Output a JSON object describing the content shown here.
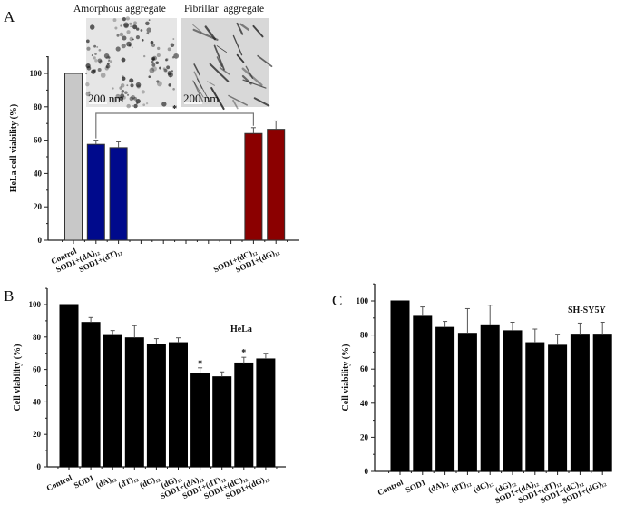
{
  "chart_data": [
    {
      "panel": "A",
      "type": "bar",
      "ylabel": "HeLa cell viability (%)",
      "ylim": [
        0,
        110
      ],
      "yticks": [
        0,
        20,
        40,
        60,
        80,
        100
      ],
      "categories": [
        "Control",
        "SOD1+(dA)₁₂",
        "SOD1+(dT)₁₂",
        "",
        "",
        "",
        "",
        "",
        "SOD1+(dC)₁₂",
        "SOD1+(dG)₁₂"
      ],
      "values": [
        100,
        57.5,
        55.5,
        null,
        null,
        null,
        null,
        null,
        64,
        66.5
      ],
      "errors": [
        0,
        2.5,
        3.5,
        null,
        null,
        null,
        null,
        null,
        3.5,
        5
      ],
      "colors": [
        "#c8c8c8",
        "#000a8c",
        "#000a8c",
        null,
        null,
        null,
        null,
        null,
        "#8b0000",
        "#8b0000"
      ],
      "significance": {
        "from": "SOD1+(dA)₁₂",
        "to": "SOD1+(dC)₁₂",
        "mark": "*"
      },
      "insets": [
        {
          "caption": "Amorphous aggregate",
          "scale_bar": "200 nm"
        },
        {
          "caption": "Fibrillar  aggregate",
          "scale_bar": "200 nm"
        }
      ],
      "grid": false
    },
    {
      "panel": "B",
      "type": "bar",
      "annotation": "HeLa",
      "ylabel": "Cell viability (%)",
      "ylim": [
        0,
        110
      ],
      "yticks": [
        0,
        20,
        40,
        60,
        80,
        100
      ],
      "categories": [
        "Control",
        "SOD1",
        "(dA)₁₂",
        "(dT)₁₂",
        "(dC)₁₂",
        "(dG)₁₂",
        "SOD1+(dA)₁₂",
        "SOD1+(dT)₁₂",
        "SOD1+(dC)₁₂",
        "SOD1+(dG)₁₂"
      ],
      "values": [
        100,
        89,
        81.5,
        79.5,
        75.5,
        76.5,
        57.5,
        55.5,
        64,
        66.5
      ],
      "errors": [
        0,
        3,
        2.5,
        7.5,
        3.5,
        3,
        3.5,
        3,
        3.5,
        3.5
      ],
      "stars": [
        "",
        "",
        "",
        "",
        "",
        "",
        "*",
        "",
        "*",
        ""
      ],
      "color": "#000000",
      "grid": false
    },
    {
      "panel": "C",
      "type": "bar",
      "annotation": "SH-SY5Y",
      "ylabel": "Cell viability (%)",
      "ylim": [
        0,
        110
      ],
      "yticks": [
        0,
        20,
        40,
        60,
        80,
        100
      ],
      "categories": [
        "Control",
        "SOD1",
        "(dA)₁₂",
        "(dT)₁₂",
        "(dC)₁₂",
        "(dG)₁₂",
        "SOD1+(dA)₁₂",
        "SOD1+(dT)₁₂",
        "SOD1+(dC)₁₂",
        "SOD1+(dG)₁₂"
      ],
      "values": [
        100,
        91,
        84.5,
        81,
        86,
        82.5,
        75.5,
        74,
        80.5,
        80.5
      ],
      "errors": [
        0,
        5.5,
        3.5,
        14.5,
        11.5,
        5,
        8,
        6.5,
        6.5,
        7
      ],
      "color": "#000000",
      "grid": false
    }
  ]
}
